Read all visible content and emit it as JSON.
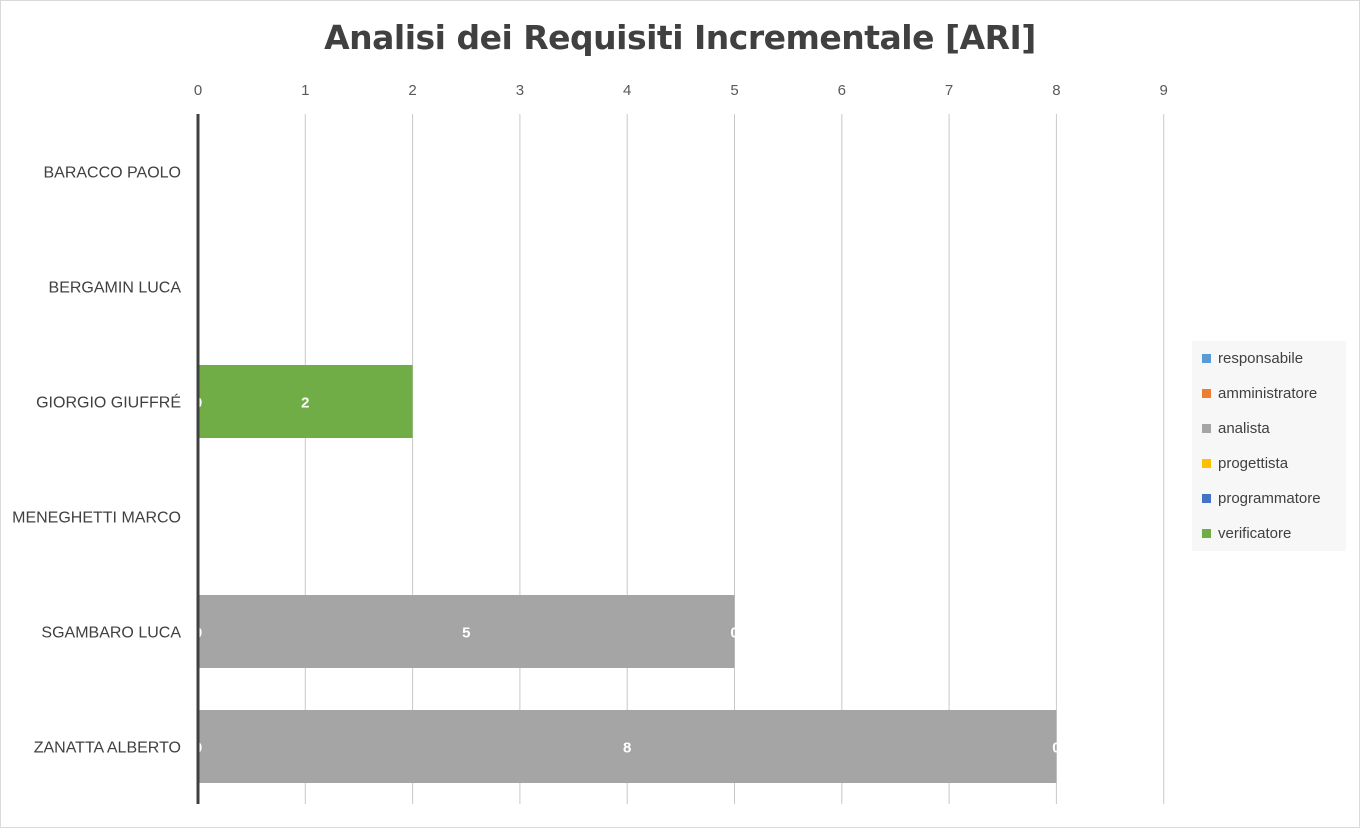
{
  "chart_data": {
    "type": "bar",
    "orientation": "horizontal",
    "stacked": true,
    "title": "Analisi dei Requisiti Incrementale [ARI]",
    "xlabel": "",
    "ylabel": "",
    "xlim": [
      0,
      9
    ],
    "x_ticks": [
      "0",
      "1",
      "2",
      "3",
      "4",
      "5",
      "6",
      "7",
      "8",
      "9"
    ],
    "x_axis_position": "top",
    "grid": true,
    "legend_position": "right",
    "categories": [
      "BARACCO PAOLO",
      "BERGAMIN LUCA",
      "GIORGIO GIUFFRÉ",
      "MENEGHETTI MARCO",
      "SGAMBARO LUCA",
      "ZANATTA ALBERTO"
    ],
    "series": [
      {
        "name": "responsabile",
        "color": "#5b9bd5",
        "values": [
          0,
          0,
          0,
          0,
          0,
          0
        ]
      },
      {
        "name": "amministratore",
        "color": "#ed7d31",
        "values": [
          0,
          0,
          0,
          0,
          0,
          0
        ]
      },
      {
        "name": "analista",
        "color": "#a5a5a5",
        "values": [
          0,
          0,
          0,
          0,
          5,
          8
        ]
      },
      {
        "name": "progettista",
        "color": "#ffc000",
        "values": [
          0,
          0,
          0,
          0,
          0,
          0
        ]
      },
      {
        "name": "programmatore",
        "color": "#4472c4",
        "values": [
          0,
          0,
          0,
          0,
          0,
          0
        ]
      },
      {
        "name": "verificatore",
        "color": "#70ad47",
        "values": [
          0,
          0,
          2,
          0,
          0,
          0
        ]
      }
    ],
    "data_labels": [
      {
        "category": "BARACCO PAOLO",
        "labels": [
          "0"
        ]
      },
      {
        "category": "BERGAMIN LUCA",
        "labels": [
          "0"
        ]
      },
      {
        "category": "GIORGIO GIUFFRÉ",
        "labels": [
          "0",
          "2"
        ]
      },
      {
        "category": "MENEGHETTI MARCO",
        "labels": [
          "0"
        ]
      },
      {
        "category": "SGAMBARO LUCA",
        "labels": [
          "0",
          "5",
          "0"
        ]
      },
      {
        "category": "ZANATTA ALBERTO",
        "labels": [
          "0",
          "8",
          "0"
        ]
      }
    ]
  }
}
